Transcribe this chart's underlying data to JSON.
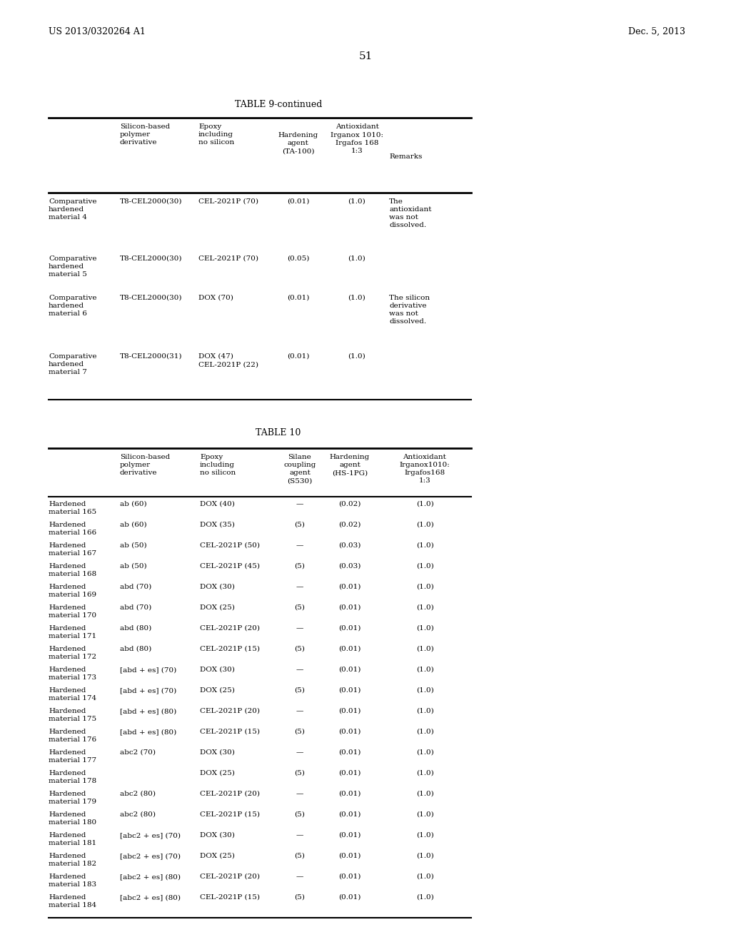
{
  "page_number": "51",
  "patent_number": "US 2013/0320264 A1",
  "patent_date": "Dec. 5, 2013",
  "table9_title": "TABLE 9-continued",
  "table9_rows": [
    [
      "Comparative\nhardened\nmaterial 4",
      "T8-CEL2000(30)",
      "CEL-2021P (70)",
      "(0.01)",
      "(1.0)",
      "The\nantioxidant\nwas not\ndissolved."
    ],
    [
      "Comparative\nhardened\nmaterial 5",
      "T8-CEL2000(30)",
      "CEL-2021P (70)",
      "(0.05)",
      "(1.0)",
      ""
    ],
    [
      "Comparative\nhardened\nmaterial 6",
      "T8-CEL2000(30)",
      "DOX (70)",
      "(0.01)",
      "(1.0)",
      "The silicon\nderivative\nwas not\ndissolved."
    ],
    [
      "Comparative\nhardened\nmaterial 7",
      "T8-CEL2000(31)",
      "DOX (47)\nCEL-2021P (22)",
      "(0.01)",
      "(1.0)",
      ""
    ]
  ],
  "table10_title": "TABLE 10",
  "table10_rows": [
    [
      "Hardened\nmaterial 165",
      "ab (60)",
      "DOX (40)",
      "—",
      "(0.02)",
      "(1.0)"
    ],
    [
      "Hardened\nmaterial 166",
      "ab (60)",
      "DOX (35)",
      "(5)",
      "(0.02)",
      "(1.0)"
    ],
    [
      "Hardened\nmaterial 167",
      "ab (50)",
      "CEL-2021P (50)",
      "—",
      "(0.03)",
      "(1.0)"
    ],
    [
      "Hardened\nmaterial 168",
      "ab (50)",
      "CEL-2021P (45)",
      "(5)",
      "(0.03)",
      "(1.0)"
    ],
    [
      "Hardened\nmaterial 169",
      "abd (70)",
      "DOX (30)",
      "—",
      "(0.01)",
      "(1.0)"
    ],
    [
      "Hardened\nmaterial 170",
      "abd (70)",
      "DOX (25)",
      "(5)",
      "(0.01)",
      "(1.0)"
    ],
    [
      "Hardened\nmaterial 171",
      "abd (80)",
      "CEL-2021P (20)",
      "—",
      "(0.01)",
      "(1.0)"
    ],
    [
      "Hardened\nmaterial 172",
      "abd (80)",
      "CEL-2021P (15)",
      "(5)",
      "(0.01)",
      "(1.0)"
    ],
    [
      "Hardened\nmaterial 173",
      "[abd + es] (70)",
      "DOX (30)",
      "—",
      "(0.01)",
      "(1.0)"
    ],
    [
      "Hardened\nmaterial 174",
      "[abd + es] (70)",
      "DOX (25)",
      "(5)",
      "(0.01)",
      "(1.0)"
    ],
    [
      "Hardened\nmaterial 175",
      "[abd + es] (80)",
      "CEL-2021P (20)",
      "—",
      "(0.01)",
      "(1.0)"
    ],
    [
      "Hardened\nmaterial 176",
      "[abd + es] (80)",
      "CEL-2021P (15)",
      "(5)",
      "(0.01)",
      "(1.0)"
    ],
    [
      "Hardened\nmaterial 177",
      "abc2 (70)",
      "DOX (30)",
      "—",
      "(0.01)",
      "(1.0)"
    ],
    [
      "Hardened\nmaterial 178",
      "",
      "DOX (25)",
      "(5)",
      "(0.01)",
      "(1.0)"
    ],
    [
      "Hardened\nmaterial 179",
      "abc2 (80)",
      "CEL-2021P (20)",
      "—",
      "(0.01)",
      "(1.0)"
    ],
    [
      "Hardened\nmaterial 180",
      "abc2 (80)",
      "CEL-2021P (15)",
      "(5)",
      "(0.01)",
      "(1.0)"
    ],
    [
      "Hardened\nmaterial 181",
      "[abc2 + es] (70)",
      "DOX (30)",
      "—",
      "(0.01)",
      "(1.0)"
    ],
    [
      "Hardened\nmaterial 182",
      "[abc2 + es] (70)",
      "DOX (25)",
      "(5)",
      "(0.01)",
      "(1.0)"
    ],
    [
      "Hardened\nmaterial 183",
      "[abc2 + es] (80)",
      "CEL-2021P (20)",
      "—",
      "(0.01)",
      "(1.0)"
    ],
    [
      "Hardened\nmaterial 184",
      "[abc2 + es] (80)",
      "CEL-2021P (15)",
      "(5)",
      "(0.01)",
      "(1.0)"
    ]
  ],
  "bg_color": "#ffffff",
  "text_color": "#000000"
}
